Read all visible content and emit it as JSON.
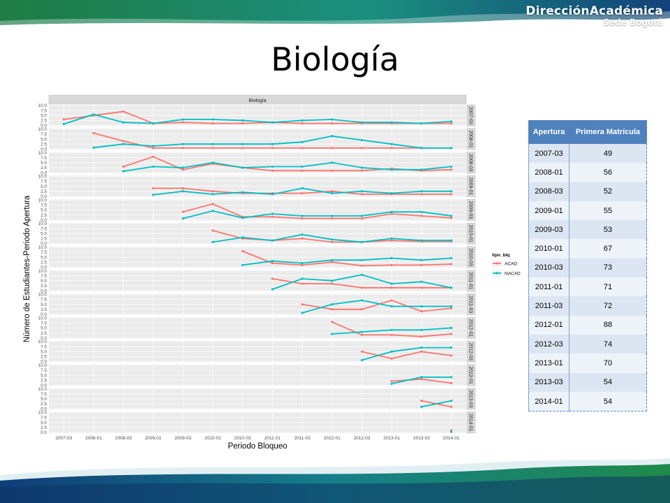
{
  "logo": {
    "main": "DirecciónAcadémica",
    "sub": "Sede Bogotá"
  },
  "title": "Biología",
  "chart_data": {
    "type": "line",
    "facet_title": "Biología",
    "xlabel": "Periodo Bloqueo",
    "ylabel": "Número de Estudiantes-Periodo Apertura",
    "x": [
      "2007-03",
      "2008-01",
      "2008-03",
      "2009-01",
      "2009-03",
      "2010-01",
      "2010-03",
      "2011-01",
      "2011-03",
      "2012-01",
      "2012-03",
      "2013-01",
      "2013-03",
      "2014-01"
    ],
    "ylim": [
      0,
      10
    ],
    "yticks": [
      "0.0",
      "2.5",
      "5.0",
      "7.5",
      "10.0"
    ],
    "legend": {
      "title": "tipo_blq",
      "placement": "right",
      "entries": [
        "ACAD",
        "NACAD"
      ]
    },
    "colors": {
      "ACAD": "#f8766d",
      "NACAD": "#00bfc4"
    },
    "grid": true,
    "panels": [
      {
        "label": "2007-03",
        "series": [
          {
            "name": "ACAD",
            "values": [
              3,
              5,
              7,
              1,
              1.5,
              1,
              1,
              1.5,
              1,
              1,
              1,
              1,
              1,
              1
            ]
          },
          {
            "name": "NACAD",
            "values": [
              0.7,
              5.5,
              1.5,
              1,
              3,
              3,
              2.5,
              1.5,
              2.5,
              3,
              1.5,
              1.5,
              1,
              2
            ]
          }
        ]
      },
      {
        "label": "2008-01",
        "series": [
          {
            "name": "ACAD",
            "values": [
              null,
              8,
              4,
              0.5,
              0.5,
              0.5,
              0.5,
              0.5,
              0.5,
              0.5,
              0.5,
              0.5,
              0.5,
              0.5
            ]
          },
          {
            "name": "NACAD",
            "values": [
              null,
              0.7,
              2.5,
              1.5,
              2.5,
              2.5,
              2.5,
              2.5,
              3.5,
              6.5,
              4.5,
              2.5,
              0.5,
              0.5
            ]
          }
        ]
      },
      {
        "label": "2008-03",
        "series": [
          {
            "name": "ACAD",
            "values": [
              null,
              null,
              3,
              8,
              1.5,
              4.5,
              2.5,
              1,
              1,
              1,
              1,
              2,
              1,
              1.5
            ]
          },
          {
            "name": "NACAD",
            "values": [
              null,
              null,
              0.7,
              3,
              2.5,
              5,
              2.5,
              3,
              3,
              5,
              2.5,
              1.5,
              1.5,
              3
            ]
          }
        ]
      },
      {
        "label": "2009-01",
        "series": [
          {
            "name": "ACAD",
            "values": [
              null,
              null,
              null,
              4,
              4,
              2.5,
              1.5,
              1.5,
              1.5,
              2.5,
              1,
              1,
              1,
              1
            ]
          },
          {
            "name": "NACAD",
            "values": [
              null,
              null,
              null,
              0.7,
              2.5,
              1,
              2,
              1,
              4,
              1.5,
              2.5,
              1.5,
              2.5,
              2.5
            ]
          }
        ]
      },
      {
        "label": "2009-03",
        "series": [
          {
            "name": "ACAD",
            "values": [
              null,
              null,
              null,
              null,
              4,
              8,
              1.5,
              1.5,
              0.7,
              0.7,
              0.7,
              3,
              2,
              1
            ]
          },
          {
            "name": "NACAD",
            "values": [
              null,
              null,
              null,
              null,
              0.7,
              4.5,
              1,
              3,
              2,
              2,
              2,
              4,
              4,
              2
            ]
          }
        ]
      },
      {
        "label": "2010-01",
        "series": [
          {
            "name": "ACAD",
            "values": [
              null,
              null,
              null,
              null,
              null,
              6.5,
              2.5,
              1.5,
              2.5,
              0.7,
              0.7,
              1.5,
              1,
              1
            ]
          },
          {
            "name": "NACAD",
            "values": [
              null,
              null,
              null,
              null,
              null,
              0.7,
              3,
              1.5,
              4.5,
              2,
              0.7,
              2.5,
              1.5,
              1.5
            ]
          }
        ]
      },
      {
        "label": "2010-03",
        "series": [
          {
            "name": "ACAD",
            "values": [
              null,
              null,
              null,
              null,
              null,
              null,
              8,
              2,
              1,
              2.5,
              0.7,
              1,
              1,
              1.5
            ]
          },
          {
            "name": "NACAD",
            "values": [
              null,
              null,
              null,
              null,
              null,
              null,
              1,
              3,
              2,
              3.5,
              3.5,
              4.5,
              3.5,
              4.5
            ]
          }
        ]
      },
      {
        "label": "2011-01",
        "series": [
          {
            "name": "ACAD",
            "values": [
              null,
              null,
              null,
              null,
              null,
              null,
              null,
              6,
              3.5,
              3.5,
              1.5,
              1.5,
              1.5,
              1.5
            ]
          },
          {
            "name": "NACAD",
            "values": [
              null,
              null,
              null,
              null,
              null,
              null,
              null,
              0.7,
              6,
              5,
              8,
              3.5,
              4.5,
              1.5
            ]
          }
        ]
      },
      {
        "label": "2011-03",
        "series": [
          {
            "name": "ACAD",
            "values": [
              null,
              null,
              null,
              null,
              null,
              null,
              null,
              null,
              5,
              2.5,
              2.5,
              7,
              1.5,
              3
            ]
          },
          {
            "name": "NACAD",
            "values": [
              null,
              null,
              null,
              null,
              null,
              null,
              null,
              null,
              0.7,
              5,
              7,
              4,
              4,
              4
            ]
          }
        ]
      },
      {
        "label": "2012-01",
        "series": [
          {
            "name": "ACAD",
            "values": [
              null,
              null,
              null,
              null,
              null,
              null,
              null,
              null,
              null,
              8,
              1.5,
              1.5,
              0.7,
              2
            ]
          },
          {
            "name": "NACAD",
            "values": [
              null,
              null,
              null,
              null,
              null,
              null,
              null,
              null,
              null,
              2,
              3,
              4,
              4,
              5
            ]
          }
        ]
      },
      {
        "label": "2012-03",
        "series": [
          {
            "name": "ACAD",
            "values": [
              null,
              null,
              null,
              null,
              null,
              null,
              null,
              null,
              null,
              null,
              5,
              1.5,
              5,
              3
            ]
          },
          {
            "name": "NACAD",
            "values": [
              null,
              null,
              null,
              null,
              null,
              null,
              null,
              null,
              null,
              null,
              0.7,
              5,
              7,
              7
            ]
          }
        ]
      },
      {
        "label": "2013-01",
        "series": [
          {
            "name": "ACAD",
            "values": [
              null,
              null,
              null,
              null,
              null,
              null,
              null,
              null,
              null,
              null,
              null,
              2,
              3,
              1
            ]
          },
          {
            "name": "NACAD",
            "values": [
              null,
              null,
              null,
              null,
              null,
              null,
              null,
              null,
              null,
              null,
              null,
              0.7,
              4,
              4
            ]
          }
        ]
      },
      {
        "label": "2013-03",
        "series": [
          {
            "name": "ACAD",
            "values": [
              null,
              null,
              null,
              null,
              null,
              null,
              null,
              null,
              null,
              null,
              null,
              null,
              4,
              1
            ]
          },
          {
            "name": "NACAD",
            "values": [
              null,
              null,
              null,
              null,
              null,
              null,
              null,
              null,
              null,
              null,
              null,
              null,
              1,
              4
            ]
          }
        ]
      },
      {
        "label": "2014-01",
        "series": [
          {
            "name": "ACAD",
            "values": [
              null,
              null,
              null,
              null,
              null,
              null,
              null,
              null,
              null,
              null,
              null,
              null,
              null,
              1
            ]
          },
          {
            "name": "NACAD",
            "values": [
              null,
              null,
              null,
              null,
              null,
              null,
              null,
              null,
              null,
              null,
              null,
              null,
              null,
              0.3
            ]
          }
        ]
      }
    ]
  },
  "table": {
    "headers": [
      "Apertura",
      "Primera Matrícula"
    ],
    "rows": [
      [
        "2007-03",
        "49"
      ],
      [
        "2008-01",
        "56"
      ],
      [
        "2008-03",
        "52"
      ],
      [
        "2009-01",
        "55"
      ],
      [
        "2009-03",
        "53"
      ],
      [
        "2010-01",
        "67"
      ],
      [
        "2010-03",
        "73"
      ],
      [
        "2011-01",
        "71"
      ],
      [
        "2011-03",
        "72"
      ],
      [
        "2012-01",
        "88"
      ],
      [
        "2012-03",
        "74"
      ],
      [
        "2013-01",
        "70"
      ],
      [
        "2013-03",
        "54"
      ],
      [
        "2014-01",
        "54"
      ]
    ]
  }
}
